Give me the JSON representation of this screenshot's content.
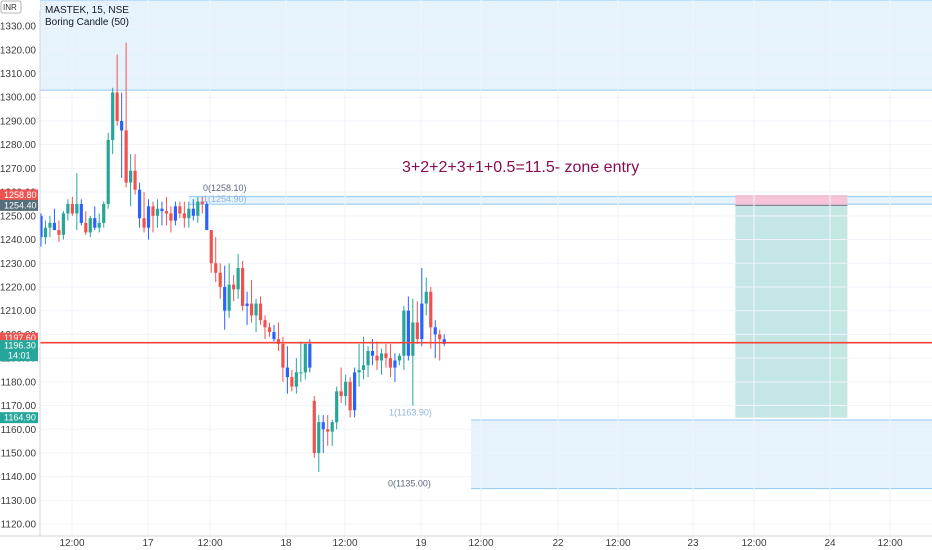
{
  "header": {
    "currency": "INR",
    "symbol_line": "MASTEK, 15, NSE",
    "indicator": "Boring Candle (50)"
  },
  "annotation": "3+2+2+3+1+0.5=11.5-  zone entry",
  "fib_labels": {
    "top_0": "0(1258.10)",
    "top_1": "1(1254.90)",
    "bottom_1": "1(1163.90)",
    "bottom_0": "0(1135.00)"
  },
  "price_badges": {
    "top_red": "1258.80",
    "top_grey": "1254.40",
    "current_red": "1197.60",
    "current_green": "1196.30",
    "countdown": "14:01",
    "bottom": "1164.90"
  },
  "colors": {
    "up": "#26a69a",
    "down": "#ef5350",
    "highlight": "#2962ff",
    "zone_fill": "#e3f2fd",
    "zone_line": "#90caf9",
    "profit": "#b2dfdb",
    "loss": "#f8bbd0",
    "price_line": "#f44336",
    "annotation": "#880e4f"
  },
  "chart_data": {
    "type": "candlestick",
    "ylim": [
      1115,
      1341
    ],
    "y_ticks": [
      1120,
      1130,
      1140,
      1150,
      1160,
      1170,
      1180,
      1190,
      1200,
      1210,
      1220,
      1230,
      1240,
      1250,
      1260,
      1270,
      1280,
      1290,
      1300,
      1310,
      1320,
      1330
    ],
    "x_tick_labels": [
      "12:00",
      "17",
      "12:00",
      "18",
      "12:00",
      "19",
      "12:00",
      "22",
      "12:00",
      "23",
      "12:00",
      "24",
      "12:00"
    ],
    "zones": [
      {
        "top": 1341,
        "bottom": 1303,
        "from_bar": 0,
        "to_bar": "end"
      },
      {
        "top": 1258.1,
        "bottom": 1254.9,
        "from_bar": 33,
        "to_bar": "end"
      },
      {
        "top": 1163.9,
        "bottom": 1135.0,
        "from_bar": 96,
        "to_bar": "end"
      }
    ],
    "position": {
      "type": "short",
      "entry": 1254.4,
      "stop": 1258.8,
      "target": 1164.9,
      "from_bar": 155,
      "to_bar": 180
    },
    "current_price": 1196.3,
    "candles": [
      [
        1250,
        1251,
        1237,
        1241
      ],
      [
        1241,
        1248,
        1238,
        1245
      ],
      [
        1245,
        1250,
        1241,
        1247
      ],
      [
        1247,
        1253,
        1244,
        1244
      ],
      [
        1244,
        1248,
        1239,
        1242
      ],
      [
        1242,
        1252,
        1240,
        1251
      ],
      [
        1251,
        1257,
        1248,
        1255
      ],
      [
        1255,
        1258,
        1250,
        1251
      ],
      [
        1251,
        1268,
        1244,
        1255
      ],
      [
        1255,
        1257,
        1246,
        1247
      ],
      [
        1247,
        1252,
        1242,
        1243
      ],
      [
        1243,
        1250,
        1241,
        1249
      ],
      [
        1249,
        1254,
        1244,
        1245
      ],
      [
        1245,
        1251,
        1243,
        1247
      ],
      [
        1247,
        1256,
        1245,
        1255
      ],
      [
        1255,
        1285,
        1253,
        1282
      ],
      [
        1282,
        1304,
        1276,
        1302
      ],
      [
        1302,
        1318,
        1288,
        1290
      ],
      [
        1290,
        1302,
        1266,
        1286
      ],
      [
        1286,
        1323,
        1262,
        1264
      ],
      [
        1264,
        1276,
        1254,
        1269
      ],
      [
        1269,
        1276,
        1259,
        1261
      ],
      [
        1261,
        1264,
        1245,
        1249
      ],
      [
        1249,
        1260,
        1243,
        1245
      ],
      [
        1245,
        1257,
        1240,
        1254
      ],
      [
        1254,
        1256,
        1243,
        1250
      ],
      [
        1250,
        1257,
        1245,
        1253
      ],
      [
        1253,
        1256,
        1246,
        1252
      ],
      [
        1252,
        1258,
        1246,
        1251
      ],
      [
        1251,
        1254,
        1243,
        1248
      ],
      [
        1248,
        1256,
        1246,
        1254
      ],
      [
        1254,
        1256,
        1249,
        1251
      ],
      [
        1251,
        1256,
        1245,
        1249
      ],
      [
        1249,
        1256,
        1245,
        1253
      ],
      [
        1253,
        1257,
        1248,
        1250
      ],
      [
        1250,
        1258,
        1247,
        1256
      ],
      [
        1256,
        1258,
        1251,
        1255
      ],
      [
        1255,
        1256,
        1244,
        1244
      ],
      [
        1244,
        1244,
        1226,
        1230
      ],
      [
        1230,
        1241,
        1222,
        1226
      ],
      [
        1226,
        1230,
        1215,
        1220
      ],
      [
        1220,
        1229,
        1202,
        1210
      ],
      [
        1210,
        1230,
        1207,
        1221
      ],
      [
        1221,
        1225,
        1214,
        1219
      ],
      [
        1219,
        1234,
        1215,
        1228
      ],
      [
        1228,
        1231,
        1210,
        1212
      ],
      [
        1212,
        1218,
        1204,
        1213
      ],
      [
        1213,
        1223,
        1205,
        1208
      ],
      [
        1208,
        1215,
        1201,
        1213
      ],
      [
        1213,
        1216,
        1204,
        1206
      ],
      [
        1206,
        1208,
        1198,
        1203
      ],
      [
        1203,
        1205,
        1199,
        1201
      ],
      [
        1201,
        1204,
        1197,
        1198
      ],
      [
        1198,
        1205,
        1193,
        1196
      ],
      [
        1196,
        1199,
        1180,
        1186
      ],
      [
        1186,
        1195,
        1175,
        1182
      ],
      [
        1182,
        1185,
        1176,
        1178
      ],
      [
        1178,
        1190,
        1175,
        1184
      ],
      [
        1184,
        1197,
        1180,
        1184
      ],
      [
        1184,
        1196,
        1181,
        1196
      ],
      [
        1196,
        1198,
        1184,
        1186
      ],
      [
        1172,
        1174,
        1148,
        1150
      ],
      [
        1150,
        1166,
        1142,
        1163
      ],
      [
        1163,
        1166,
        1150,
        1160
      ],
      [
        1160,
        1166,
        1153,
        1159
      ],
      [
        1159,
        1164,
        1153,
        1163
      ],
      [
        1163,
        1178,
        1160,
        1176
      ],
      [
        1176,
        1186,
        1171,
        1174
      ],
      [
        1174,
        1183,
        1170,
        1180
      ],
      [
        1180,
        1182,
        1165,
        1168
      ],
      [
        1168,
        1186,
        1165,
        1184
      ],
      [
        1184,
        1196,
        1178,
        1185
      ],
      [
        1185,
        1199,
        1181,
        1187
      ],
      [
        1187,
        1195,
        1182,
        1193
      ],
      [
        1193,
        1198,
        1187,
        1191
      ],
      [
        1191,
        1197,
        1185,
        1189
      ],
      [
        1189,
        1194,
        1183,
        1192
      ],
      [
        1192,
        1196,
        1186,
        1190
      ],
      [
        1190,
        1196,
        1182,
        1186
      ],
      [
        1186,
        1192,
        1180,
        1189
      ],
      [
        1189,
        1192,
        1187,
        1191
      ],
      [
        1191,
        1212,
        1185,
        1210
      ],
      [
        1210,
        1216,
        1189,
        1191
      ],
      [
        1191,
        1215,
        1170,
        1205
      ],
      [
        1205,
        1214,
        1196,
        1198
      ],
      [
        1198,
        1228,
        1195,
        1213
      ],
      [
        1213,
        1224,
        1208,
        1218
      ],
      [
        1218,
        1220,
        1194,
        1203
      ],
      [
        1203,
        1206,
        1190,
        1200
      ],
      [
        1200,
        1202,
        1189,
        1198
      ],
      [
        1198,
        1200,
        1195,
        1196
      ]
    ]
  }
}
